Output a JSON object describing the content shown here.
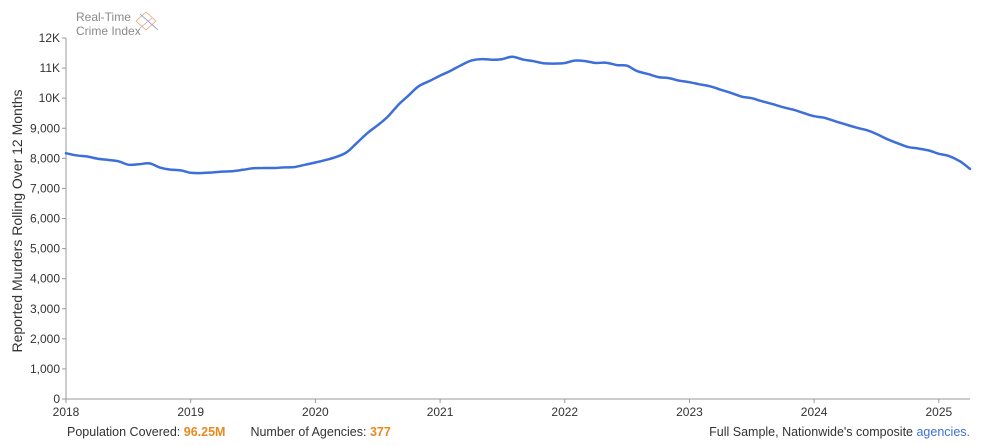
{
  "logo": {
    "line1": "Real-Time",
    "line2": "Crime Index"
  },
  "footer": {
    "population_label": "Population Covered:",
    "population_value": "96.25M",
    "agencies_label": "Number of Agencies:",
    "agencies_value": "377",
    "sample_text": "Full Sample, Nationwide's composite",
    "agencies_link": "agencies."
  },
  "colors": {
    "line": "#3d6fd9",
    "accent": "#e8891e"
  },
  "chart_data": {
    "type": "line",
    "ylabel": "Reported Murders Rolling Over 12 Months",
    "xlabel": "",
    "ylim": [
      0,
      12000
    ],
    "xlim": [
      2018.0,
      2025.25
    ],
    "y_ticks": [
      0,
      1000,
      2000,
      3000,
      4000,
      5000,
      6000,
      7000,
      8000,
      9000,
      10000,
      11000,
      12000
    ],
    "y_tick_labels": [
      "0",
      "1,000",
      "2,000",
      "3,000",
      "4,000",
      "5,000",
      "6,000",
      "7,000",
      "8,000",
      "9,000",
      "10K",
      "11K",
      "12K"
    ],
    "x_ticks": [
      2018,
      2019,
      2020,
      2021,
      2022,
      2023,
      2024,
      2025
    ],
    "x_tick_labels": [
      "2018",
      "2019",
      "2020",
      "2021",
      "2022",
      "2023",
      "2024",
      "2025"
    ],
    "grid": false,
    "series": [
      {
        "x": [
          2018.0,
          2018.08,
          2018.17,
          2018.25,
          2018.33,
          2018.42,
          2018.5,
          2018.58,
          2018.67,
          2018.75,
          2018.83,
          2018.92,
          2019.0,
          2019.08,
          2019.17,
          2019.25,
          2019.33,
          2019.42,
          2019.5,
          2019.58,
          2019.67,
          2019.75,
          2019.83,
          2019.92,
          2020.0,
          2020.08,
          2020.17,
          2020.25,
          2020.33,
          2020.42,
          2020.5,
          2020.58,
          2020.67,
          2020.75,
          2020.83,
          2020.92,
          2021.0,
          2021.08,
          2021.17,
          2021.25,
          2021.33,
          2021.42,
          2021.5,
          2021.58,
          2021.67,
          2021.75,
          2021.83,
          2021.92,
          2022.0,
          2022.08,
          2022.17,
          2022.25,
          2022.33,
          2022.42,
          2022.5,
          2022.58,
          2022.67,
          2022.75,
          2022.83,
          2022.92,
          2023.0,
          2023.08,
          2023.17,
          2023.25,
          2023.33,
          2023.42,
          2023.5,
          2023.58,
          2023.67,
          2023.75,
          2023.83,
          2023.92,
          2024.0,
          2024.08,
          2024.17,
          2024.25,
          2024.33,
          2024.42,
          2024.5,
          2024.58,
          2024.67,
          2024.75,
          2024.83,
          2024.92,
          2025.0,
          2025.08,
          2025.17,
          2025.25
        ],
        "y": [
          8170,
          8100,
          8060,
          7990,
          7950,
          7900,
          7790,
          7800,
          7830,
          7700,
          7630,
          7600,
          7520,
          7510,
          7530,
          7560,
          7570,
          7620,
          7670,
          7680,
          7680,
          7700,
          7710,
          7790,
          7860,
          7940,
          8050,
          8200,
          8500,
          8850,
          9100,
          9380,
          9800,
          10100,
          10400,
          10580,
          10750,
          10900,
          11100,
          11250,
          11300,
          11280,
          11300,
          11380,
          11280,
          11230,
          11160,
          11150,
          11170,
          11250,
          11230,
          11170,
          11180,
          11100,
          11080,
          10900,
          10800,
          10700,
          10670,
          10580,
          10530,
          10460,
          10390,
          10280,
          10180,
          10050,
          10000,
          9900,
          9800,
          9700,
          9620,
          9500,
          9400,
          9350,
          9230,
          9130,
          9030,
          8940,
          8810,
          8650,
          8500,
          8380,
          8330,
          8260,
          8150,
          8080,
          7900,
          7650
        ]
      }
    ]
  }
}
